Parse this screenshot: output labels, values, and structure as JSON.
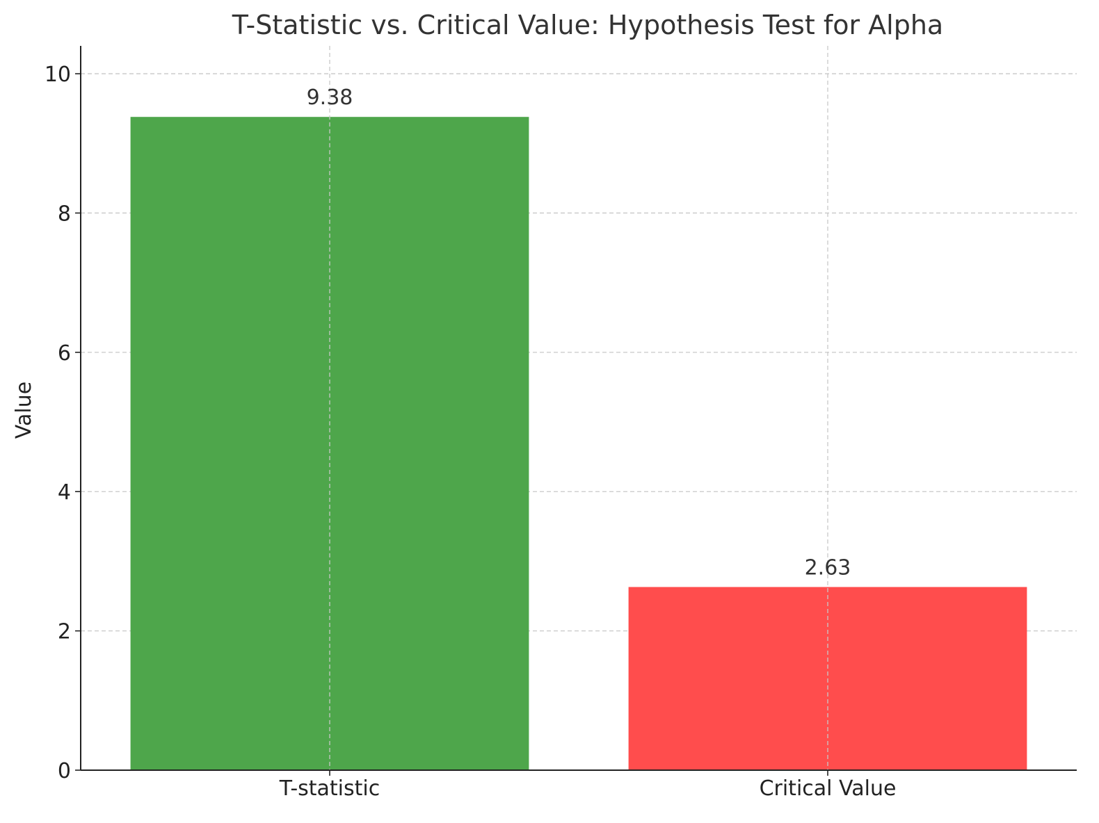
{
  "chart_data": {
    "type": "bar",
    "title": "T-Statistic vs. Critical Value: Hypothesis Test for Alpha",
    "xlabel": "",
    "ylabel": "Value",
    "categories": [
      "T-statistic",
      "Critical Value"
    ],
    "values": [
      9.38,
      2.63
    ],
    "data_labels": [
      "9.38",
      "2.63"
    ],
    "bar_colors": [
      "#4ea64b",
      "#ff4d4d"
    ],
    "ylim": [
      0,
      10.4
    ],
    "yticks": [
      0,
      2,
      4,
      6,
      8,
      10
    ],
    "ytick_labels": [
      "0",
      "2",
      "4",
      "6",
      "8",
      "10"
    ],
    "grid": true,
    "legend": "none"
  }
}
